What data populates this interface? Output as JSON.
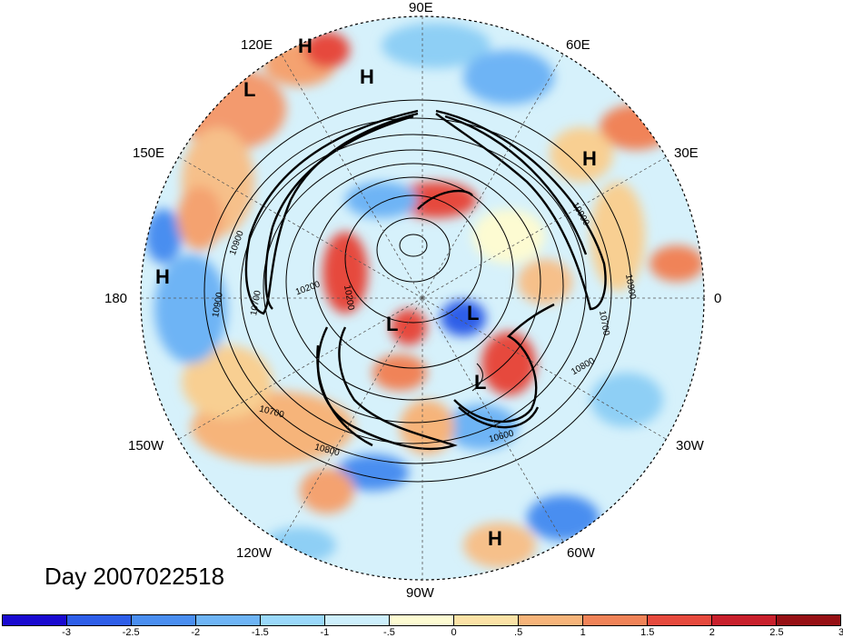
{
  "date_label": "Day 2007022518",
  "longitude_labels": {
    "deg90e": "90E",
    "deg60e": "60E",
    "deg30e": "30E",
    "deg0": "0",
    "deg30w": "30W",
    "deg60w": "60W",
    "deg90w": "90W",
    "deg120w": "120W",
    "deg150w": "150W",
    "deg180": "180",
    "deg150e": "150E",
    "deg120e": "120E"
  },
  "pressure_centers": [
    "H",
    "H",
    "L",
    "H",
    "H",
    "L",
    "L",
    "L",
    "H"
  ],
  "contour_labels": {
    "c10900a": "10900",
    "c10900b": "10900",
    "c10900c": "10900",
    "c10900d": "10900",
    "c10700a": "10700",
    "c10700b": "10700",
    "c10700c": "10700",
    "c10800a": "10800",
    "c10800b": "10800",
    "c10600": "10600",
    "c10200a": "10200",
    "c10200b": "10200"
  },
  "colorbar": {
    "colors": [
      "#1a0ad0",
      "#2e5ee8",
      "#4a8ef0",
      "#6eb4f5",
      "#9ad8fa",
      "#cdeffc",
      "#fdfbd2",
      "#fbe2a6",
      "#f6b47a",
      "#f08358",
      "#e64a3e",
      "#c8202c",
      "#961014"
    ],
    "labels": [
      "-3",
      "-2.5",
      "-2",
      "-1.5",
      "-1",
      "-.5",
      "0",
      ".5",
      "1",
      "1.5",
      "2",
      "2.5",
      "3"
    ]
  }
}
